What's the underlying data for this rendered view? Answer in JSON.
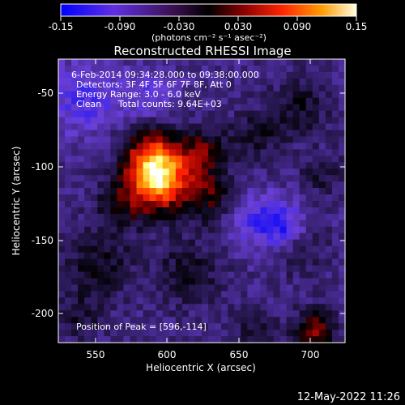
{
  "colorbar": {
    "ticks": [
      "-0.15",
      "-0.090",
      "-0.030",
      "0.030",
      "0.090",
      "0.15"
    ],
    "unit_label": "(photons cm⁻² s⁻¹ asec⁻²)",
    "range": [
      -0.15,
      0.15
    ]
  },
  "title": "Reconstructed RHESSI Image",
  "info": {
    "time_range": "6-Feb-2014 09:34:28.000 to 09:38:00.000",
    "detectors": "Detectors: 3F 4F 5F 6F 7F 8F, Att 0",
    "energy": "Energy Range: 3.0 - 6.0 keV",
    "clean": "Clean",
    "total_counts": "Total counts: 9.64E+03",
    "peak": "Position of Peak = [596,-114]"
  },
  "x_axis": {
    "label": "Heliocentric X (arcsec)",
    "ticks": [
      "550",
      "600",
      "650",
      "700"
    ]
  },
  "y_axis": {
    "label": "Heliocentric Y (arcsec)",
    "ticks": [
      "-50",
      "-100",
      "-150",
      "-200"
    ]
  },
  "timestamp": "12-May-2022 11:26",
  "chart_data": {
    "type": "heatmap",
    "title": "Reconstructed RHESSI Image",
    "xlabel": "Heliocentric X (arcsec)",
    "ylabel": "Heliocentric Y (arcsec)",
    "xlim": [
      528,
      720
    ],
    "ylim": [
      -222,
      -33
    ],
    "value_range": [
      -0.15,
      0.15
    ],
    "peak": [
      596,
      -114
    ],
    "colormap_stops": [
      "#0000ff",
      "#6a3fd8",
      "#000000",
      "#8b0000",
      "#ff2000",
      "#ff9a00",
      "#ffff80",
      "#ffffff"
    ]
  }
}
